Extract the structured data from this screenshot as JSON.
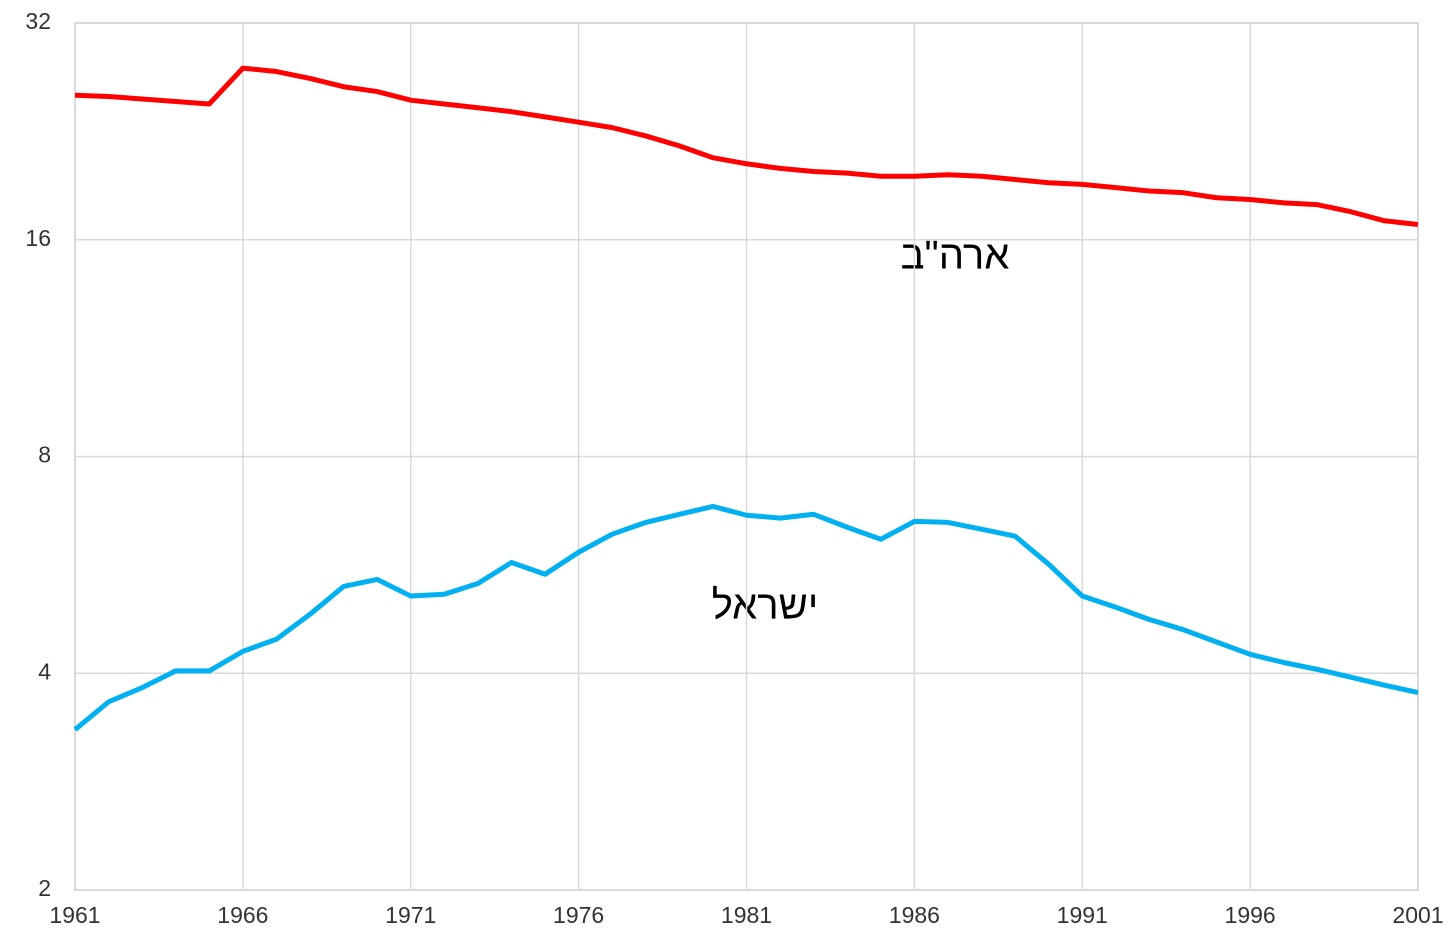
{
  "chart_data": {
    "type": "line",
    "x": [
      1961,
      1962,
      1963,
      1964,
      1965,
      1966,
      1967,
      1968,
      1969,
      1970,
      1971,
      1972,
      1973,
      1974,
      1975,
      1976,
      1977,
      1978,
      1979,
      1980,
      1981,
      1982,
      1983,
      1984,
      1985,
      1986,
      1987,
      1988,
      1989,
      1990,
      1991,
      1992,
      1993,
      1994,
      1995,
      1996,
      1997,
      1998,
      1999,
      2000,
      2001
    ],
    "series": [
      {
        "name": "ארה\"ב",
        "color": "#ff0000",
        "values": [
          25.4,
          25.3,
          25.1,
          24.9,
          24.7,
          27.7,
          27.4,
          26.8,
          26.1,
          25.7,
          25.0,
          24.7,
          24.4,
          24.1,
          23.7,
          23.3,
          22.9,
          22.3,
          21.6,
          20.8,
          20.4,
          20.1,
          19.9,
          19.8,
          19.6,
          19.6,
          19.7,
          19.6,
          19.4,
          19.2,
          19.1,
          18.9,
          18.7,
          18.6,
          18.3,
          18.2,
          18.0,
          17.9,
          17.5,
          17.0,
          16.8
        ]
      },
      {
        "name": "ישראל",
        "color": "#00b0f0",
        "values": [
          3.34,
          3.65,
          3.82,
          4.03,
          4.03,
          4.29,
          4.46,
          4.83,
          5.28,
          5.4,
          5.12,
          5.15,
          5.33,
          5.7,
          5.49,
          5.89,
          6.24,
          6.48,
          6.65,
          6.82,
          6.63,
          6.57,
          6.65,
          6.38,
          6.14,
          6.5,
          6.48,
          6.34,
          6.2,
          5.67,
          5.12,
          4.94,
          4.75,
          4.6,
          4.42,
          4.25,
          4.14,
          4.05,
          3.95,
          3.85,
          3.76
        ]
      }
    ],
    "xlim": [
      1961,
      2001
    ],
    "xticks": [
      1961,
      1966,
      1971,
      1976,
      1981,
      1986,
      1991,
      1996,
      2001
    ],
    "ylim": [
      2,
      32
    ],
    "yticks": [
      2,
      4,
      8,
      16,
      32
    ],
    "log_scale": true,
    "grid": true
  }
}
